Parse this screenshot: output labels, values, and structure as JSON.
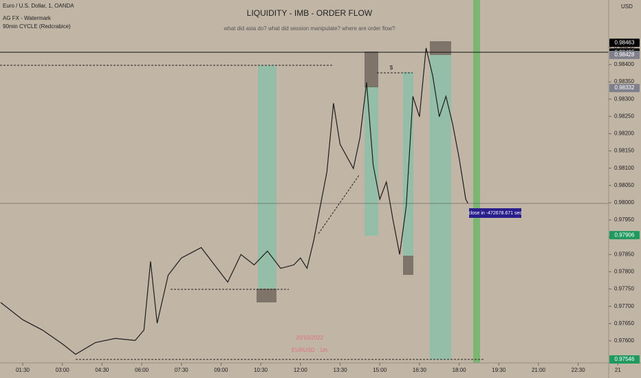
{
  "chart_data": {
    "type": "line",
    "title": "LIQUIDITY - IMB - ORDER FLOW",
    "subtitle": "what did asia do? what did session manipulate? where are order flow?",
    "symbol": "Euro / U.S. Dollar, 1, OANDA",
    "indicators": [
      "AG FX - Watermark",
      "90min CYCLE (Redcrabice)"
    ],
    "currency": "USD",
    "watermark": [
      "20/10/2022",
      "EURUSD · 1m"
    ],
    "annotations": [
      "$",
      "close in -472678.671 sec"
    ],
    "x": [
      "00:40",
      "01:30",
      "02:15",
      "03:00",
      "03:30",
      "04:15",
      "05:00",
      "05:45",
      "06:05",
      "06:20",
      "06:35",
      "07:00",
      "07:30",
      "08:15",
      "08:45",
      "09:15",
      "09:45",
      "10:15",
      "10:45",
      "11:15",
      "11:45",
      "12:00",
      "12:15",
      "12:30",
      "12:45",
      "13:00",
      "13:15",
      "13:30",
      "14:00",
      "14:15",
      "14:30",
      "14:45",
      "15:00",
      "15:15",
      "15:30",
      "15:45",
      "16:00",
      "16:15",
      "16:30",
      "16:45",
      "17:00",
      "17:15",
      "17:30",
      "17:45",
      "18:00",
      "18:15",
      "18:20"
    ],
    "series": [
      {
        "name": "EURUSD",
        "color": "#1c1c1c",
        "values": [
          0.97711,
          0.97661,
          0.97631,
          0.97591,
          0.97561,
          0.97595,
          0.97607,
          0.97601,
          0.97631,
          0.9783,
          0.97651,
          0.9779,
          0.9784,
          0.9787,
          0.9782,
          0.9777,
          0.9785,
          0.9782,
          0.9786,
          0.9781,
          0.9782,
          0.9784,
          0.9781,
          0.9789,
          0.9799,
          0.98089,
          0.98288,
          0.98169,
          0.98099,
          0.98189,
          0.98348,
          0.98109,
          0.9801,
          0.9806,
          0.9795,
          0.9785,
          0.9799,
          0.98308,
          0.98249,
          0.98448,
          0.98368,
          0.98249,
          0.98308,
          0.98229,
          0.98129,
          0.9801,
          0.97998
        ]
      }
    ],
    "xticks": [
      "01:30",
      "03:00",
      "04:30",
      "06:00",
      "07:30",
      "09:00",
      "10:30",
      "12:00",
      "13:30",
      "15:00",
      "16:30",
      "18:00",
      "19:30",
      "21:00",
      "22:30",
      {
        "value": "24:00",
        "label": "21"
      }
    ],
    "ylim": [
      0.97552,
      0.98587
    ],
    "yticks": [
      {
        "value": 0.976,
        "label": "0.97600"
      },
      {
        "value": 0.9765,
        "label": "0.97650"
      },
      {
        "value": 0.977,
        "label": "0.97700"
      },
      {
        "value": 0.9775,
        "label": "0.97750"
      },
      {
        "value": 0.978,
        "label": "0.97800"
      },
      {
        "value": 0.9785,
        "label": "0.97850"
      },
      {
        "value": 0.979,
        "label": "0.97900"
      },
      {
        "value": 0.9795,
        "label": "0.97950"
      },
      {
        "value": 0.98,
        "label": "0.98000"
      },
      {
        "value": 0.9805,
        "label": "0.98050"
      },
      {
        "value": 0.981,
        "label": "0.98100"
      },
      {
        "value": 0.9815,
        "label": "0.98150"
      },
      {
        "value": 0.982,
        "label": "0.98200"
      },
      {
        "value": 0.9825,
        "label": "0.98250"
      },
      {
        "value": 0.983,
        "label": "0.98300"
      },
      {
        "value": 0.9835,
        "label": "0.98350"
      },
      {
        "value": 0.984,
        "label": "0.98400"
      },
      {
        "value": 0.9845,
        "label": "0.98450"
      }
    ],
    "price_tags": {
      "values": [
        0.98463,
        0.98435,
        0.98428,
        0.98332,
        0.97906,
        0.97546
      ],
      "colors": [
        "#000000",
        "#000000",
        "#80808c",
        "#80808c",
        "#1f9960",
        "#1f9960"
      ]
    }
  }
}
